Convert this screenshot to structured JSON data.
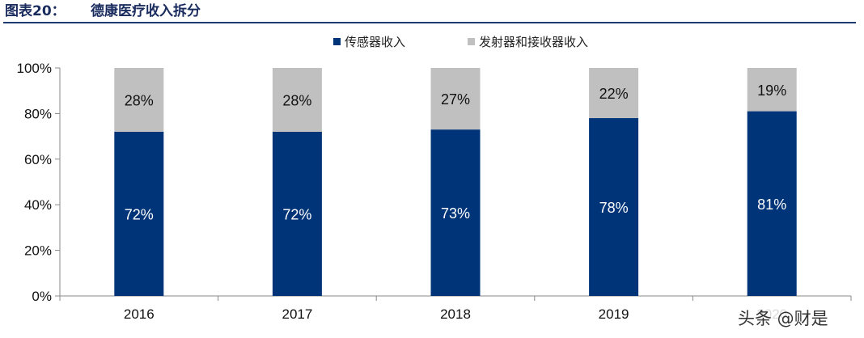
{
  "header": {
    "figure_label": "图表20：",
    "figure_title": "德康医疗收入拆分"
  },
  "watermark": "头条 @财是",
  "colors": {
    "sensor": "#003478",
    "transmitter": "#c0c0c0",
    "title_rule": "#1f3a70"
  },
  "chart_data": {
    "type": "bar",
    "stacked": true,
    "categories": [
      "2016",
      "2017",
      "2018",
      "2019",
      "2020"
    ],
    "series": [
      {
        "name": "传感器收入",
        "values": [
          72,
          72,
          73,
          78,
          81
        ],
        "labels": [
          "72%",
          "72%",
          "73%",
          "78%",
          "81%"
        ]
      },
      {
        "name": "发射器和接收器收入",
        "values": [
          28,
          28,
          27,
          22,
          19
        ],
        "labels": [
          "28%",
          "28%",
          "27%",
          "22%",
          "19%"
        ]
      }
    ],
    "ylim": [
      0,
      100
    ],
    "yticks": [
      "0%",
      "20%",
      "40%",
      "60%",
      "80%",
      "100%"
    ],
    "xlabel": "",
    "ylabel": "",
    "legend": "top-right",
    "grid": false
  }
}
